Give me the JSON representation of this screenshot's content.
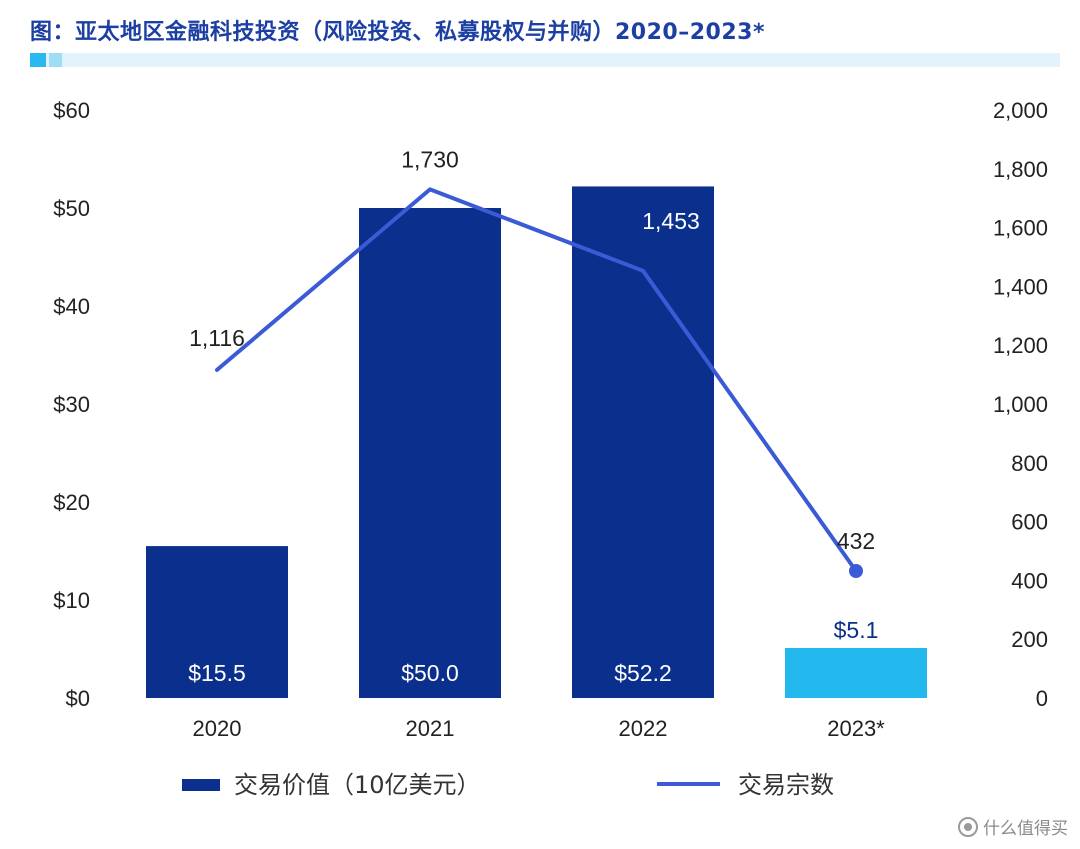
{
  "title": "图：亚太地区金融科技投资（风险投资、私募股权与并购）2020–2023*",
  "watermark": "值 什么值得买",
  "colors": {
    "title": "#1c3fa3",
    "bar": "#0b2f8c",
    "bar_highlight": "#22b8ee",
    "line": "#3b5bd6"
  },
  "chart_data": {
    "type": "bar+line",
    "categories": [
      "2020",
      "2021",
      "2022",
      "2023*"
    ],
    "series": [
      {
        "name": "交易价值（10亿美元）",
        "type": "bar",
        "axis": "left",
        "values": [
          15.5,
          50.0,
          52.2,
          5.1
        ],
        "labels": [
          "$15.5",
          "$50.0",
          "$52.2",
          "$5.1"
        ]
      },
      {
        "name": "交易宗数",
        "type": "line",
        "axis": "right",
        "values": [
          1116,
          1730,
          1453,
          432
        ],
        "labels": [
          "1,116",
          "1,730",
          "1,453",
          "432"
        ]
      }
    ],
    "y_left": {
      "ylim": [
        0,
        60
      ],
      "ticks": [
        0,
        10,
        20,
        30,
        40,
        50,
        60
      ],
      "tick_labels": [
        "$0",
        "$10",
        "$20",
        "$30",
        "$40",
        "$50",
        "$60"
      ]
    },
    "y_right": {
      "ylim": [
        0,
        2000
      ],
      "ticks": [
        0,
        200,
        400,
        600,
        800,
        1000,
        1200,
        1400,
        1600,
        1800,
        2000
      ],
      "tick_labels": [
        "0",
        "200",
        "400",
        "600",
        "800",
        "1,000",
        "1,200",
        "1,400",
        "1,600",
        "1,800",
        "2,000"
      ]
    },
    "legend": {
      "placement": "bottom",
      "items": [
        "交易价值（10亿美元）",
        "交易宗数"
      ]
    },
    "grid": false
  }
}
